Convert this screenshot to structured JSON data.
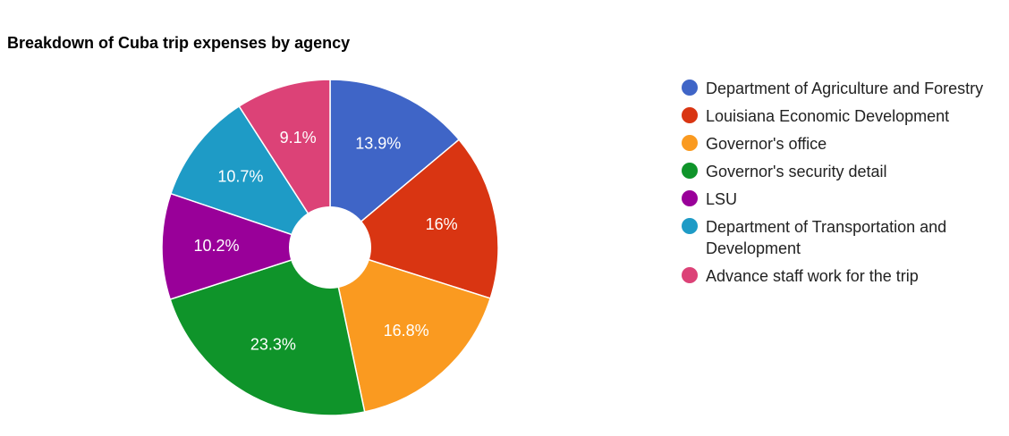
{
  "chart_data": {
    "type": "pie",
    "title": "Breakdown of Cuba trip expenses by agency",
    "donut_hole": true,
    "legend_position": "right",
    "slices": [
      {
        "name": "Department of Agriculture and Forestry",
        "value": 13.9,
        "label": "13.9%",
        "color": "#3f65c7"
      },
      {
        "name": "Louisiana Economic Development",
        "value": 16.0,
        "label": "16%",
        "color": "#d93512"
      },
      {
        "name": "Governor's office",
        "value": 16.8,
        "label": "16.8%",
        "color": "#fa9a20"
      },
      {
        "name": "Governor's security detail",
        "value": 23.3,
        "label": "23.3%",
        "color": "#0f942a"
      },
      {
        "name": "LSU",
        "value": 10.2,
        "label": "10.2%",
        "color": "#990099"
      },
      {
        "name": "Department of Transportation and Development",
        "value": 10.7,
        "label": "10.7%",
        "color": "#1e9bc6"
      },
      {
        "name": "Advance staff work for the trip",
        "value": 9.1,
        "label": "9.1%",
        "color": "#dc4277"
      }
    ]
  }
}
